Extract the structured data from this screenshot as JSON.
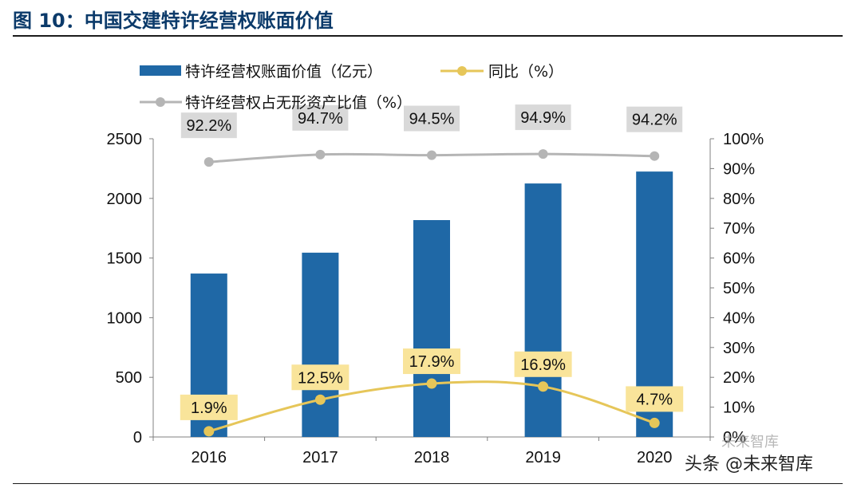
{
  "figure": {
    "title": "图 10：中国交建特许经营权账面价值"
  },
  "watermark": {
    "text": "头条 @未来智库",
    "logo_text": "未来智库"
  },
  "colors": {
    "bar": "#1f68a6",
    "yoy_line": "#e6c659",
    "yoy_label_bg": "#f9e49a",
    "share_line": "#b5b5b5",
    "share_label_bg": "#d9d9d9",
    "axis": "#808080",
    "text": "#111111"
  },
  "chart_data": {
    "type": "bar",
    "categories": [
      "2016",
      "2017",
      "2018",
      "2019",
      "2020"
    ],
    "series": [
      {
        "name": "特许经营权账面价值（亿元）",
        "type": "bar",
        "axis": "left",
        "values": [
          1370,
          1545,
          1818,
          2125,
          2225
        ]
      },
      {
        "name": "同比（%）",
        "type": "line",
        "axis": "right",
        "values": [
          1.9,
          12.5,
          17.9,
          16.9,
          4.7
        ],
        "labels": [
          "1.9%",
          "12.5%",
          "17.9%",
          "16.9%",
          "4.7%"
        ]
      },
      {
        "name": "特许经营权占无形资产比值（%）",
        "type": "line",
        "axis": "right",
        "values": [
          92.2,
          94.7,
          94.5,
          94.9,
          94.2
        ],
        "labels": [
          "92.2%",
          "94.7%",
          "94.5%",
          "94.9%",
          "94.2%"
        ]
      }
    ],
    "y_left": {
      "ylim": [
        0,
        2500
      ],
      "ticks": [
        "0",
        "500",
        "1000",
        "1500",
        "2000",
        "2500"
      ]
    },
    "y_right": {
      "ylim": [
        0,
        100
      ],
      "ticks": [
        "0%",
        "10%",
        "20%",
        "30%",
        "40%",
        "50%",
        "60%",
        "70%",
        "80%",
        "90%",
        "100%"
      ]
    },
    "legend_position": "top-left",
    "grid": false
  }
}
